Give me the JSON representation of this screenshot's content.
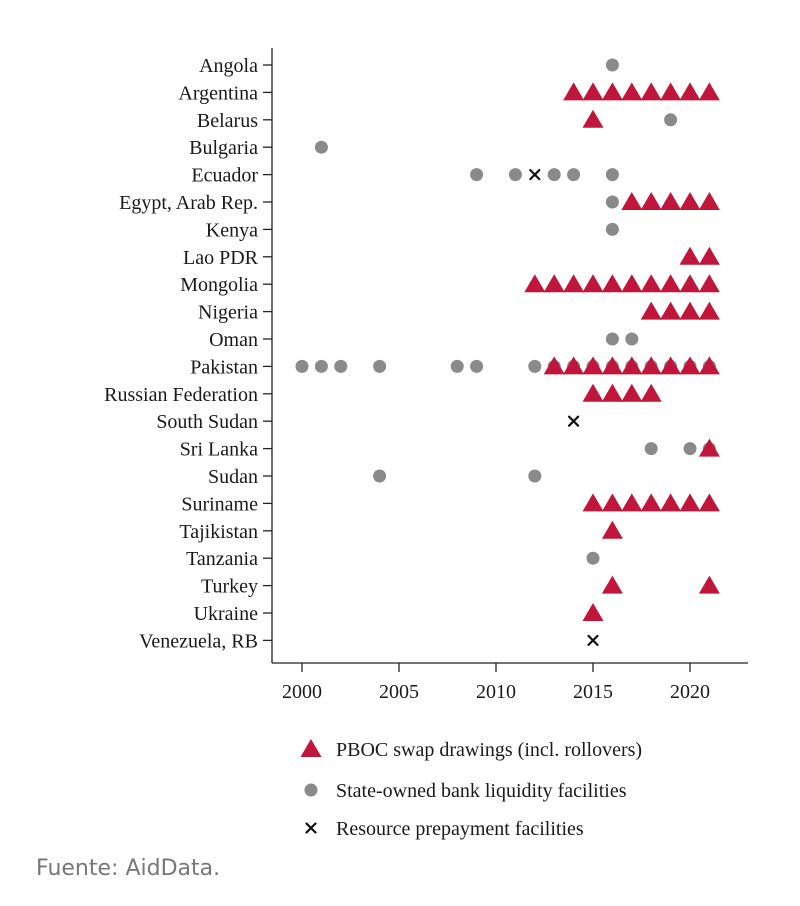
{
  "chart_data": {
    "type": "scatter",
    "xlim": [
      1998.5,
      2023
    ],
    "xticks": [
      2000,
      2005,
      2010,
      2015,
      2020
    ],
    "countries": [
      "Angola",
      "Argentina",
      "Belarus",
      "Bulgaria",
      "Ecuador",
      "Egypt, Arab Rep.",
      "Kenya",
      "Lao PDR",
      "Mongolia",
      "Nigeria",
      "Oman",
      "Pakistan",
      "Russian Federation",
      "South Sudan",
      "Sri Lanka",
      "Sudan",
      "Suriname",
      "Tajikistan",
      "Tanzania",
      "Turkey",
      "Ukraine",
      "Venezuela, RB"
    ],
    "series": [
      {
        "name": "PBOC swap drawings (incl. rollovers)",
        "marker": "triangle",
        "color": "#c0163b",
        "points": {
          "Argentina": [
            2014,
            2015,
            2016,
            2017,
            2018,
            2019,
            2020,
            2021
          ],
          "Belarus": [
            2015
          ],
          "Egypt, Arab Rep.": [
            2017,
            2018,
            2019,
            2020,
            2021
          ],
          "Lao PDR": [
            2020,
            2021
          ],
          "Mongolia": [
            2012,
            2013,
            2014,
            2015,
            2016,
            2017,
            2018,
            2019,
            2020,
            2021
          ],
          "Nigeria": [
            2018,
            2019,
            2020,
            2021
          ],
          "Pakistan": [
            2013,
            2014,
            2015,
            2016,
            2017,
            2018,
            2019,
            2020,
            2021
          ],
          "Russian Federation": [
            2015,
            2016,
            2017,
            2018
          ],
          "Sri Lanka": [
            2021
          ],
          "Suriname": [
            2015,
            2016,
            2017,
            2018,
            2019,
            2020,
            2021
          ],
          "Tajikistan": [
            2016
          ],
          "Turkey": [
            2016,
            2021
          ],
          "Ukraine": [
            2015
          ]
        }
      },
      {
        "name": "State-owned bank liquidity facilities",
        "marker": "circle",
        "color": "#8a8a8a",
        "points": {
          "Angola": [
            2016
          ],
          "Belarus": [
            2019
          ],
          "Bulgaria": [
            2001
          ],
          "Ecuador": [
            2009,
            2011,
            2013,
            2014,
            2016
          ],
          "Egypt, Arab Rep.": [
            2016
          ],
          "Kenya": [
            2016
          ],
          "Oman": [
            2016,
            2017
          ],
          "Pakistan": [
            2000,
            2001,
            2002,
            2004,
            2008,
            2009,
            2012,
            2013,
            2014,
            2015,
            2016,
            2017,
            2018,
            2019,
            2020,
            2021
          ],
          "Sri Lanka": [
            2018,
            2020,
            2021
          ],
          "Sudan": [
            2004,
            2012
          ],
          "Tanzania": [
            2015
          ]
        }
      },
      {
        "name": "Resource prepayment facilities",
        "marker": "cross",
        "color": "#111111",
        "points": {
          "Ecuador": [
            2012
          ],
          "South Sudan": [
            2014
          ],
          "Venezuela, RB": [
            2015
          ]
        }
      }
    ]
  },
  "source_note": "Fuente: AidData."
}
